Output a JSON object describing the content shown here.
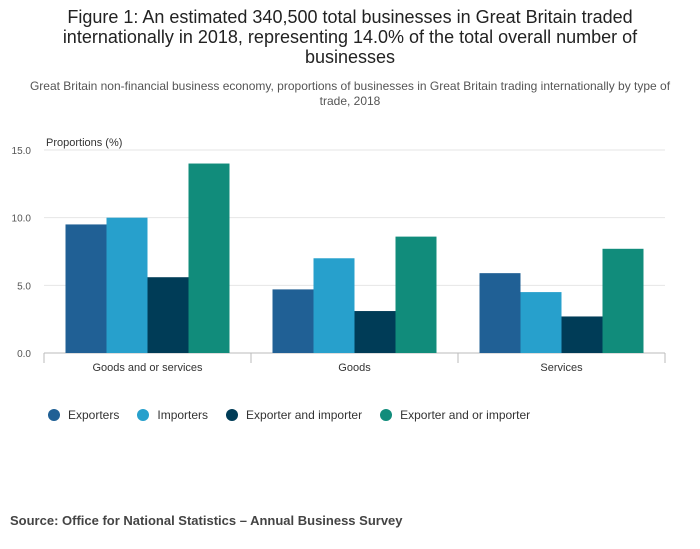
{
  "title": "Figure 1: An estimated 340,500 total businesses in Great Britain traded internationally in 2018, representing 14.0% of the total overall number of businesses",
  "subtitle": "Great Britain non-financial business economy, proportions of businesses in Great Britain trading internationally by type of trade, 2018",
  "source": "Source: Office for National Statistics – Annual Business Survey",
  "chart_data": {
    "type": "bar",
    "ylabel": "Proportions (%)",
    "xlabel": "",
    "ylim": [
      0,
      15
    ],
    "yticks": [
      "0.0",
      "5.0",
      "10.0",
      "15.0"
    ],
    "grid": true,
    "legend_position": "bottom-left",
    "categories": [
      "Goods and or services",
      "Goods",
      "Services"
    ],
    "series": [
      {
        "name": "Exporters",
        "color": "#206095",
        "values": [
          9.5,
          4.7,
          5.9
        ]
      },
      {
        "name": "Importers",
        "color": "#27a0cc",
        "values": [
          10.0,
          7.0,
          4.5
        ]
      },
      {
        "name": "Exporter and importer",
        "color": "#003c57",
        "values": [
          5.6,
          3.1,
          2.7
        ]
      },
      {
        "name": "Exporter and or importer",
        "color": "#118c7b",
        "values": [
          14.0,
          8.6,
          7.7
        ]
      }
    ]
  }
}
